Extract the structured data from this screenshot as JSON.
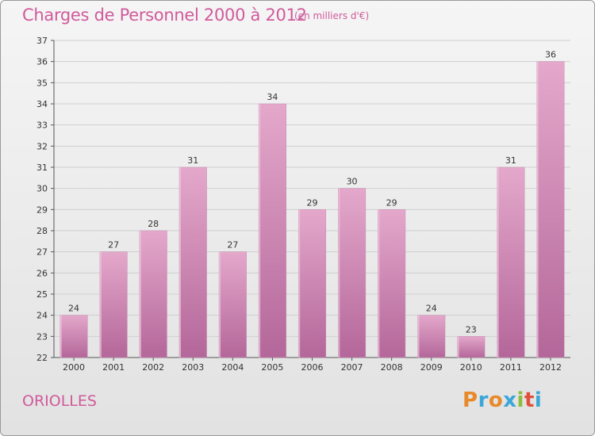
{
  "header": {
    "title": "Charges de Personnel 2000 à 2012",
    "subtitle": "(en milliers d'€)"
  },
  "footer": {
    "town": "ORIOLLES",
    "logo_text": "Proxiti",
    "logo_colors": [
      "#e8892a",
      "#3aa7d8",
      "#e8892a",
      "#3aa7d8",
      "#8cbd3b",
      "#e0503c",
      "#3aa7d8"
    ]
  },
  "colors": {
    "accent": "#d05a9b",
    "bar_light": "#e4a8cb",
    "bar_dark": "#b4679a"
  },
  "chart_data": {
    "type": "bar",
    "title": "Charges de Personnel 2000 à 2012",
    "subtitle": "(en milliers d'€)",
    "categories": [
      "2000",
      "2001",
      "2002",
      "2003",
      "2004",
      "2005",
      "2006",
      "2007",
      "2008",
      "2009",
      "2010",
      "2011",
      "2012"
    ],
    "values": [
      24,
      27,
      28,
      31,
      27,
      34,
      29,
      30,
      29,
      24,
      23,
      31,
      36
    ],
    "ylim": [
      22,
      37
    ],
    "yticks": [
      22,
      23,
      24,
      25,
      26,
      27,
      28,
      29,
      30,
      31,
      32,
      33,
      34,
      35,
      36,
      37
    ],
    "grid": true,
    "data_labels": true
  }
}
